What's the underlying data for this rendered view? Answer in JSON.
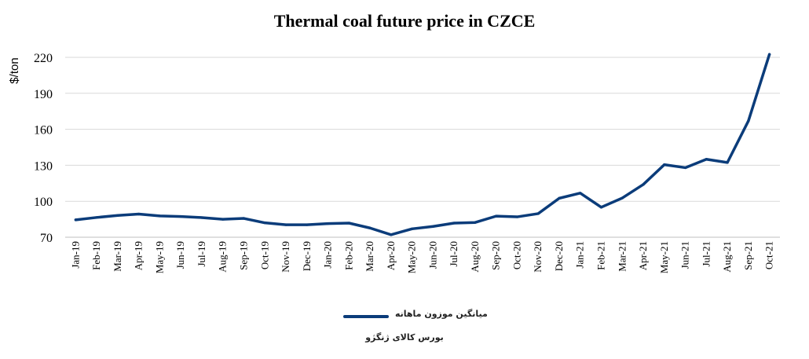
{
  "chart_data": {
    "type": "line",
    "title": "Thermal coal future price in CZCE",
    "ylabel": "$/ton",
    "xlabel": "",
    "ylim": [
      70,
      220
    ],
    "yticks": [
      70,
      100,
      130,
      160,
      190,
      220
    ],
    "grid": true,
    "categories": [
      "Jan-19",
      "Feb-19",
      "Mar-19",
      "Apr-19",
      "May-19",
      "Jun-19",
      "Jul-19",
      "Aug-19",
      "Sep-19",
      "Oct-19",
      "Nov-19",
      "Dec-19",
      "Jan-20",
      "Feb-20",
      "Mar-20",
      "Apr-20",
      "May-20",
      "Jun-20",
      "Jul-20",
      "Aug-20",
      "Sep-20",
      "Oct-20",
      "Nov-20",
      "Dec-20",
      "Jan-21",
      "Feb-21",
      "Mar-21",
      "Apr-21",
      "May-21",
      "Jun-21",
      "Jul-21",
      "Aug-21",
      "Sep-21",
      "Oct-21"
    ],
    "series": [
      {
        "name": "میانگین موزون ماهانه",
        "color": "#0b3c7a",
        "values": [
          84.5,
          86.5,
          88.2,
          89.3,
          87.8,
          87.3,
          86.4,
          85.0,
          85.7,
          82.0,
          80.4,
          80.4,
          81.4,
          81.8,
          77.7,
          72.1,
          77.0,
          79.0,
          81.8,
          82.3,
          87.6,
          87.0,
          89.7,
          102.5,
          106.8,
          95.0,
          102.7,
          114.0,
          130.5,
          128.0,
          135.0,
          132.3,
          167.0,
          222.5
        ]
      }
    ],
    "legend_position": "bottom",
    "legend_subtitle": "بورس کالای ژنگژو"
  }
}
